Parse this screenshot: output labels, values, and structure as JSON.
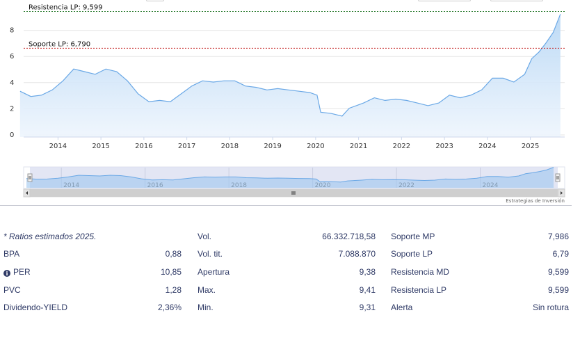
{
  "chart_data": {
    "type": "area",
    "x_ticks": [
      "2014",
      "2015",
      "2016",
      "2017",
      "2018",
      "2019",
      "2020",
      "2021",
      "2022",
      "2023",
      "2024",
      "2025"
    ],
    "y_ticks": [
      "0",
      "2",
      "4",
      "6",
      "8"
    ],
    "ylim": [
      0,
      10
    ],
    "grid": true,
    "colors": {
      "line": "#6aa8e6",
      "fill": "#b9d8f5",
      "resistance": "#2e7d32",
      "support": "#c62828"
    },
    "series": [
      {
        "values": [
          {
            "x": "2013-03",
            "y": 3.5
          },
          {
            "x": "2013-06",
            "y": 3.1
          },
          {
            "x": "2013-09",
            "y": 3.2
          },
          {
            "x": "2013-12",
            "y": 3.6
          },
          {
            "x": "2014-03",
            "y": 4.3
          },
          {
            "x": "2014-06",
            "y": 5.2
          },
          {
            "x": "2014-09",
            "y": 5.0
          },
          {
            "x": "2014-12",
            "y": 4.8
          },
          {
            "x": "2015-03",
            "y": 5.2
          },
          {
            "x": "2015-06",
            "y": 5.0
          },
          {
            "x": "2015-09",
            "y": 4.3
          },
          {
            "x": "2015-12",
            "y": 3.3
          },
          {
            "x": "2016-03",
            "y": 2.7
          },
          {
            "x": "2016-06",
            "y": 2.8
          },
          {
            "x": "2016-09",
            "y": 2.7
          },
          {
            "x": "2016-12",
            "y": 3.3
          },
          {
            "x": "2017-03",
            "y": 3.9
          },
          {
            "x": "2017-06",
            "y": 4.3
          },
          {
            "x": "2017-09",
            "y": 4.2
          },
          {
            "x": "2017-12",
            "y": 4.3
          },
          {
            "x": "2018-03",
            "y": 4.3
          },
          {
            "x": "2018-06",
            "y": 3.9
          },
          {
            "x": "2018-09",
            "y": 3.8
          },
          {
            "x": "2018-12",
            "y": 3.6
          },
          {
            "x": "2019-03",
            "y": 3.7
          },
          {
            "x": "2019-06",
            "y": 3.6
          },
          {
            "x": "2019-09",
            "y": 3.5
          },
          {
            "x": "2019-12",
            "y": 3.4
          },
          {
            "x": "2020-02",
            "y": 3.2
          },
          {
            "x": "2020-03",
            "y": 1.9
          },
          {
            "x": "2020-06",
            "y": 1.8
          },
          {
            "x": "2020-09",
            "y": 1.6
          },
          {
            "x": "2020-11",
            "y": 2.2
          },
          {
            "x": "2021-03",
            "y": 2.6
          },
          {
            "x": "2021-06",
            "y": 3.0
          },
          {
            "x": "2021-09",
            "y": 2.8
          },
          {
            "x": "2021-12",
            "y": 2.9
          },
          {
            "x": "2022-03",
            "y": 2.8
          },
          {
            "x": "2022-06",
            "y": 2.6
          },
          {
            "x": "2022-09",
            "y": 2.4
          },
          {
            "x": "2022-12",
            "y": 2.6
          },
          {
            "x": "2023-03",
            "y": 3.2
          },
          {
            "x": "2023-06",
            "y": 3.0
          },
          {
            "x": "2023-09",
            "y": 3.2
          },
          {
            "x": "2023-12",
            "y": 3.6
          },
          {
            "x": "2024-03",
            "y": 4.5
          },
          {
            "x": "2024-06",
            "y": 4.5
          },
          {
            "x": "2024-09",
            "y": 4.2
          },
          {
            "x": "2024-12",
            "y": 4.8
          },
          {
            "x": "2025-02",
            "y": 6.0
          },
          {
            "x": "2025-04",
            "y": 6.5
          },
          {
            "x": "2025-06",
            "y": 7.2
          },
          {
            "x": "2025-08",
            "y": 8.0
          },
          {
            "x": "2025-10",
            "y": 9.4
          }
        ]
      }
    ],
    "reference_lines": [
      {
        "label": "Resistencia LP: 9,599",
        "value": 9.599,
        "style": "dotted"
      },
      {
        "label": "Soporte LP: 6,790",
        "value": 6.79,
        "style": "dotted"
      }
    ],
    "navigator": {
      "x_ticks": [
        "2014",
        "2016",
        "2018",
        "2020",
        "2022",
        "2024"
      ]
    },
    "credit": "Estrategias de Inversión"
  },
  "stats": {
    "note": "* Ratios estimados 2025.",
    "col1": [
      {
        "label": "BPA",
        "value": "0,88"
      },
      {
        "label": "PER",
        "value": "10,85",
        "info_icon": "info-icon"
      },
      {
        "label": "PVC",
        "value": "1,28"
      },
      {
        "label": "Dividendo-YIELD",
        "value": "2,36%"
      }
    ],
    "col2": [
      {
        "label": "Vol.",
        "value": "66.332.718,58"
      },
      {
        "label": "Vol. tit.",
        "value": "7.088.870"
      },
      {
        "label": "Apertura",
        "value": "9,38"
      },
      {
        "label": "Max.",
        "value": "9,41"
      },
      {
        "label": "Min.",
        "value": "9,31"
      }
    ],
    "col3": [
      {
        "label": "Soporte MP",
        "value": "7,986"
      },
      {
        "label": "Soporte LP",
        "value": "6,79"
      },
      {
        "label": "Resistencia MD",
        "value": "9,599"
      },
      {
        "label": "Resistencia LP",
        "value": "9,599"
      },
      {
        "label": "Alerta",
        "value": "Sin rotura"
      }
    ]
  }
}
